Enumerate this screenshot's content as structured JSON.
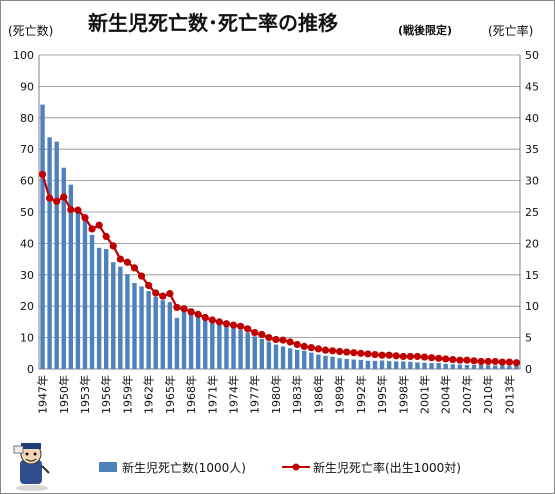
{
  "chart_data": {
    "type": "bar",
    "title": "新生児死亡数･死亡率の推移",
    "subtitle": "(戦後限定)",
    "left_axis_label": "(死亡数)",
    "right_axis_label": "(死亡率)",
    "y_left_range": [
      0,
      100
    ],
    "y_left_ticks": [
      "0",
      "10",
      "20",
      "30",
      "40",
      "50",
      "60",
      "70",
      "80",
      "90",
      "100"
    ],
    "y_right_range": [
      0,
      50
    ],
    "y_right_ticks": [
      "0",
      "5",
      "10",
      "15",
      "20",
      "25",
      "30",
      "35",
      "40",
      "45",
      "50"
    ],
    "grid": true,
    "legend_placement": "bottom",
    "x": [
      1947,
      1948,
      1949,
      1950,
      1951,
      1952,
      1953,
      1954,
      1955,
      1956,
      1957,
      1958,
      1959,
      1960,
      1961,
      1962,
      1963,
      1964,
      1965,
      1966,
      1967,
      1968,
      1969,
      1970,
      1971,
      1972,
      1973,
      1974,
      1975,
      1976,
      1977,
      1978,
      1979,
      1980,
      1981,
      1982,
      1983,
      1984,
      1985,
      1986,
      1987,
      1988,
      1989,
      1990,
      1991,
      1992,
      1993,
      1994,
      1995,
      1996,
      1997,
      1998,
      1999,
      2000,
      2001,
      2002,
      2003,
      2004,
      2005,
      2006,
      2007,
      2008,
      2009,
      2010,
      2011,
      2012,
      2013,
      2014
    ],
    "x_tick_labels": [
      "1947年",
      "1950年",
      "1953年",
      "1956年",
      "1959年",
      "1962年",
      "1965年",
      "1968年",
      "1971年",
      "1974年",
      "1977年",
      "1980年",
      "1983年",
      "1986年",
      "1989年",
      "1992年",
      "1995年",
      "1998年",
      "2001年",
      "2004年",
      "2007年",
      "2010年",
      "2013年"
    ],
    "series": [
      {
        "name": "新生児死亡数(1000人)",
        "kind": "bar",
        "axis": "left",
        "color": "#4f81bd",
        "values": [
          84.2,
          73.8,
          72.4,
          64.1,
          58.7,
          51.3,
          47.6,
          42.7,
          38.6,
          38.2,
          34.0,
          32.6,
          30.2,
          27.4,
          26.3,
          24.8,
          23.0,
          21.9,
          21.3,
          16.3,
          20.2,
          19.3,
          18.0,
          16.7,
          15.2,
          14.6,
          14.4,
          13.3,
          12.4,
          11.6,
          10.4,
          9.6,
          8.7,
          7.8,
          7.2,
          6.6,
          6.1,
          5.8,
          5.2,
          4.6,
          4.2,
          3.9,
          3.4,
          3.2,
          3.0,
          2.9,
          2.6,
          2.6,
          2.7,
          2.5,
          2.4,
          2.4,
          2.3,
          2.1,
          2.0,
          1.9,
          1.9,
          1.6,
          1.5,
          1.4,
          1.3,
          1.3,
          1.3,
          1.2,
          1.1,
          1.1,
          1.0,
          0.95
        ]
      },
      {
        "name": "新生児死亡率(出生1000対)",
        "kind": "line",
        "axis": "right",
        "color": "#c00000",
        "values": [
          31.0,
          27.2,
          26.7,
          27.4,
          25.4,
          25.3,
          24.1,
          22.3,
          22.9,
          21.1,
          19.6,
          17.5,
          17.0,
          16.1,
          14.8,
          13.3,
          12.1,
          11.6,
          12.0,
          9.8,
          9.6,
          9.1,
          8.7,
          8.2,
          7.8,
          7.5,
          7.2,
          7.0,
          6.8,
          6.4,
          5.8,
          5.5,
          5.0,
          4.7,
          4.6,
          4.3,
          3.9,
          3.6,
          3.4,
          3.2,
          3.0,
          2.9,
          2.8,
          2.7,
          2.6,
          2.5,
          2.4,
          2.3,
          2.2,
          2.2,
          2.1,
          2.0,
          2.0,
          2.0,
          1.9,
          1.8,
          1.7,
          1.6,
          1.5,
          1.4,
          1.4,
          1.3,
          1.2,
          1.2,
          1.2,
          1.1,
          1.1,
          1.0
        ]
      }
    ]
  },
  "icons": {
    "mascot": "cartoon-figure-icon"
  }
}
